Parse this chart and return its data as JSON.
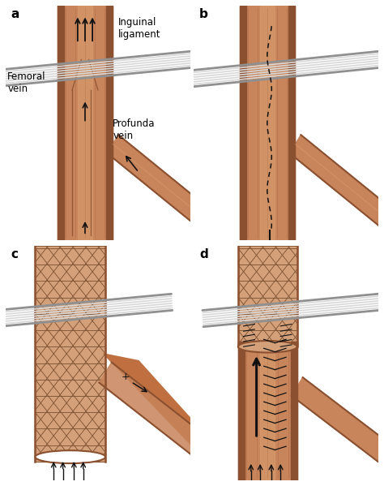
{
  "figure_size": [
    4.74,
    5.99
  ],
  "dpi": 100,
  "bg_color": "#ffffff",
  "panel_labels": [
    "a",
    "b",
    "c",
    "d"
  ],
  "vein_color": "#c8845a",
  "vein_dark": "#8B5030",
  "vein_light": "#e0a878",
  "stent_bg": "#d4a07a",
  "stent_grid": "#7a5030",
  "ligament_color": "#d8d8d8",
  "ligament_dark": "#909090",
  "arrow_color": "#111111",
  "label_fontsize": 8.5,
  "panel_fontsize": 11
}
